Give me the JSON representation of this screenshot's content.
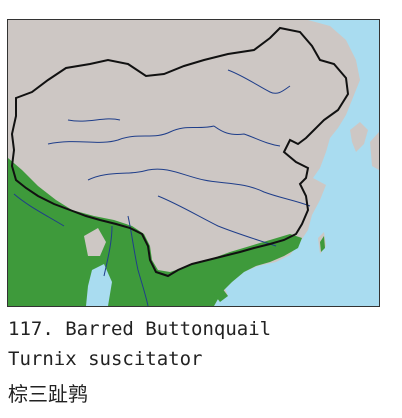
{
  "caption": {
    "english_name": "117. Barred Buttonquail",
    "scientific_name": "Turnix suscitator",
    "chinese_name": "棕三趾鹑"
  },
  "map": {
    "legend_colors": {
      "land": "#cdc7c4",
      "water": "#a9dcf0",
      "species_range": "#3e9a3b",
      "border": "#111111",
      "rivers": "#1f3e8a"
    }
  }
}
